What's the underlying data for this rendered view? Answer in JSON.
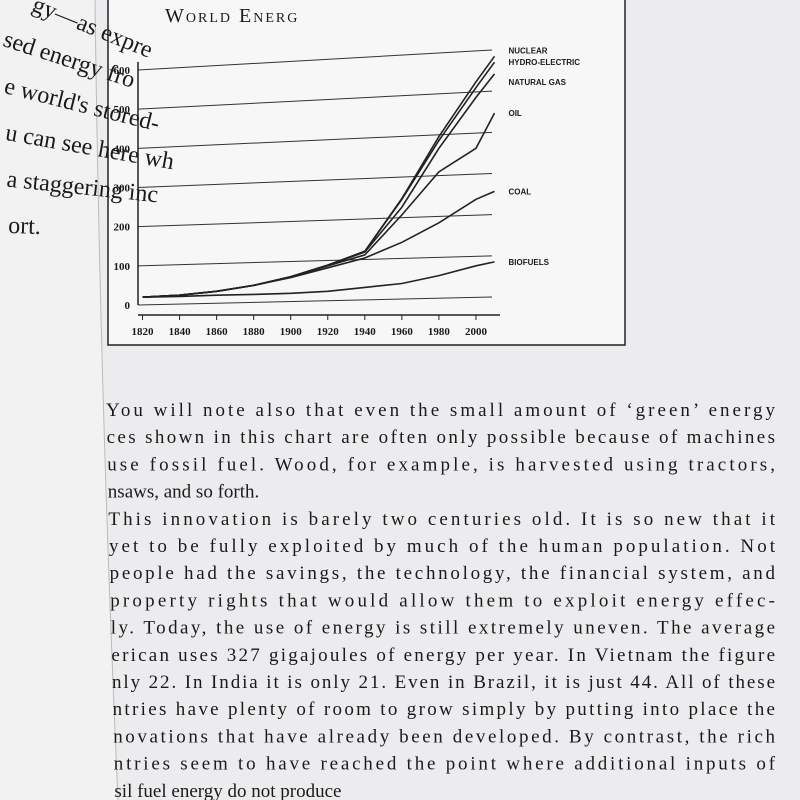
{
  "chart_data": {
    "type": "stacked-line",
    "title": "World Energ",
    "x": [
      1820,
      1840,
      1860,
      1880,
      1900,
      1920,
      1940,
      1960,
      1980,
      2000,
      2010
    ],
    "series": [
      {
        "name": "BIOFUELS",
        "color": "#222222",
        "values": [
          20,
          22,
          25,
          27,
          30,
          35,
          45,
          55,
          75,
          100,
          110
        ]
      },
      {
        "name": "COAL",
        "color": "#222222",
        "values": [
          0,
          3,
          10,
          23,
          40,
          60,
          75,
          105,
          135,
          170,
          180
        ]
      },
      {
        "name": "OIL",
        "color": "#222222",
        "values": [
          0,
          0,
          0,
          0,
          2,
          5,
          8,
          70,
          130,
          130,
          200
        ]
      },
      {
        "name": "NATURAL GAS",
        "color": "#222222",
        "values": [
          0,
          0,
          0,
          0,
          0,
          2,
          7,
          20,
          60,
          130,
          100
        ]
      },
      {
        "name": "HYDRO-ELECTRIC",
        "color": "#222222",
        "values": [
          0,
          0,
          0,
          0,
          0,
          0,
          2,
          20,
          20,
          25,
          30
        ]
      },
      {
        "name": "NUCLEAR",
        "color": "#222222",
        "values": [
          0,
          0,
          0,
          0,
          0,
          0,
          0,
          2,
          10,
          15,
          15
        ]
      }
    ],
    "xlim": [
      1810,
      2020
    ],
    "ylim": [
      0,
      600
    ],
    "xticks": [
      1820,
      1840,
      1860,
      1880,
      1900,
      1920,
      1940,
      1960,
      1980,
      2000
    ],
    "yticks": [
      0,
      100,
      200,
      300,
      400,
      500,
      600
    ],
    "grid": true
  },
  "left_page": [
    "gy—as expre",
    "sed energy fro",
    "e world's stored-",
    "u can see here wh",
    "a staggering inc",
    "ort."
  ],
  "body": [
    "You will note also that even the small amount of ‘green’ energy",
    "ces shown in this chart are often only possible because of machines",
    "use fossil fuel. Wood, for example, is harvested using tractors,",
    "nsaws, and so forth.",
    "This innovation is barely two centuries old. It is so new that it",
    "yet to be fully exploited by much of the human population. Not",
    "people had the savings, the technology, the financial system, and",
    "property rights that would allow them to exploit energy effec-",
    "ly. Today, the use of energy is still extremely uneven. The average",
    "erican uses 327 gigajoules of energy per year. In Vietnam the figure",
    "nly 22. In India it is only 21. Even in Brazil, it is just 44. All of these",
    "ntries have plenty of room to grow simply by putting into place the",
    "novations that have already been developed. By contrast, the rich",
    "ntries seem to have reached the point where additional inputs of",
    "sil fuel energy do not produce"
  ]
}
